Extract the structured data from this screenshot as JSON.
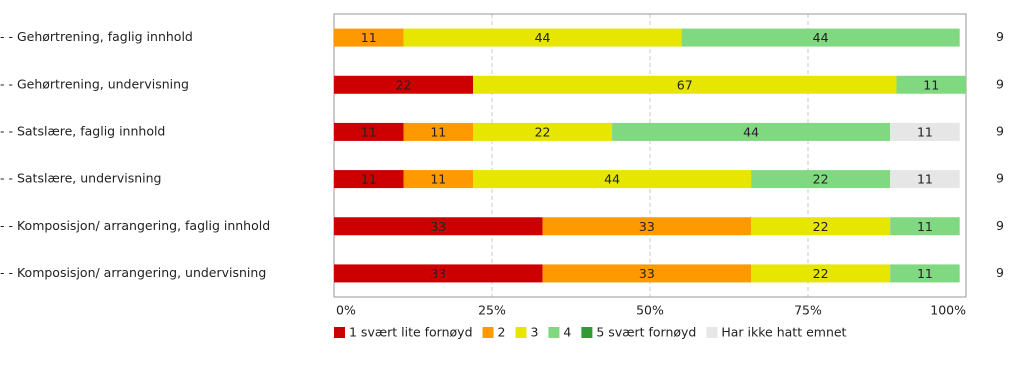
{
  "chart_data": {
    "type": "bar",
    "orientation": "horizontal",
    "stacked": true,
    "categories": [
      "- - Gehørtrening, faglig innhold",
      "- - Gehørtrening, undervisning",
      "- - Satslære, faglig innhold",
      "- - Satslære, undervisning",
      "- - Komposisjon/ arrangering, faglig innhold",
      "- - Komposisjon/ arrangering, undervisning"
    ],
    "n": [
      9,
      9,
      9,
      9,
      9,
      9
    ],
    "series": [
      {
        "name": "1 svært lite fornøyd",
        "color": "#cc0000",
        "values": [
          null,
          22,
          11,
          11,
          33,
          33
        ]
      },
      {
        "name": "2",
        "color": "#ff9900",
        "values": [
          11,
          null,
          11,
          11,
          33,
          33
        ]
      },
      {
        "name": "3",
        "color": "#e6e600",
        "values": [
          44,
          67,
          22,
          44,
          22,
          22
        ]
      },
      {
        "name": "4",
        "color": "#80d880",
        "values": [
          44,
          11,
          44,
          22,
          11,
          11
        ]
      },
      {
        "name": "5 svært fornøyd",
        "color": "#339933",
        "values": [
          null,
          null,
          null,
          null,
          null,
          null
        ]
      },
      {
        "name": "Har ikke hatt emnet",
        "color": "#e6e6e6",
        "values": [
          null,
          null,
          11,
          11,
          null,
          null
        ]
      }
    ],
    "xlim": [
      0,
      100
    ],
    "xticks": [
      {
        "value": 0,
        "label": "0%"
      },
      {
        "value": 25,
        "label": "25%"
      },
      {
        "value": 50,
        "label": "50%"
      },
      {
        "value": 75,
        "label": "75%"
      },
      {
        "value": 100,
        "label": "100%"
      }
    ],
    "grid": true,
    "legend": "bottom"
  }
}
